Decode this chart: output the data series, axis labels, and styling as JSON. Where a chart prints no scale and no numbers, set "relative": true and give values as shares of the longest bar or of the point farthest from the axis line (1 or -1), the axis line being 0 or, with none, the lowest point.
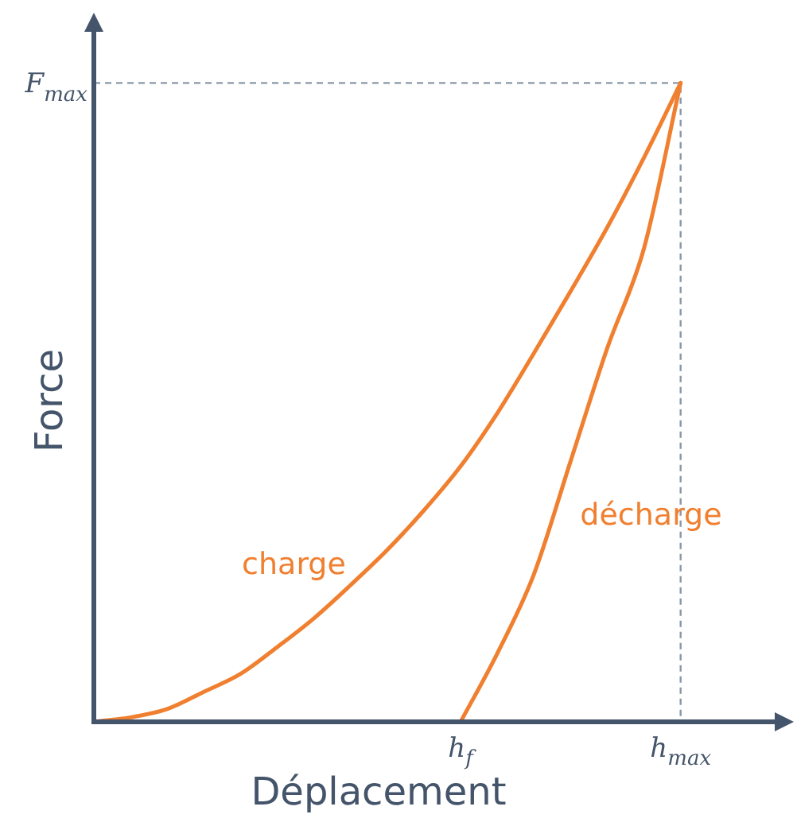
{
  "chart_data": {
    "type": "line",
    "xlabel": "Déplacement",
    "ylabel": "Force",
    "relative": true,
    "annotations": [
      "F$_{max}$",
      "h$_{f}$",
      "h$_{max}$"
    ],
    "ref_lines": [
      {
        "axis": "y",
        "value": 1,
        "color": "#8a97a8",
        "line_style": "dashed"
      }
    ],
    "categories": [
      null,
      null,
      null,
      null,
      null,
      null,
      null,
      null,
      null,
      null,
      null,
      null,
      null,
      null,
      null,
      null,
      null,
      null,
      null,
      null
    ],
    "series": [
      {
        "name": "charge",
        "color": "#f07f2f",
        "values": [
          0,
          0.007,
          0.02,
          0.047,
          0.075,
          0.117,
          0.162,
          0.214,
          0.269,
          0.331,
          0.4,
          0.483,
          0.577,
          0.674,
          0.774,
          0.883,
          1,
          null,
          null,
          null
        ]
      },
      {
        "name": "décharge",
        "color": "#f07f2f",
        "values": [
          null,
          null,
          null,
          null,
          null,
          null,
          null,
          null,
          null,
          null,
          0,
          0.107,
          0.231,
          0.408,
          0.585,
          0.741,
          1,
          null,
          null,
          null
        ]
      }
    ],
    "legend": false,
    "marker": "none",
    "line_style": "solid"
  }
}
